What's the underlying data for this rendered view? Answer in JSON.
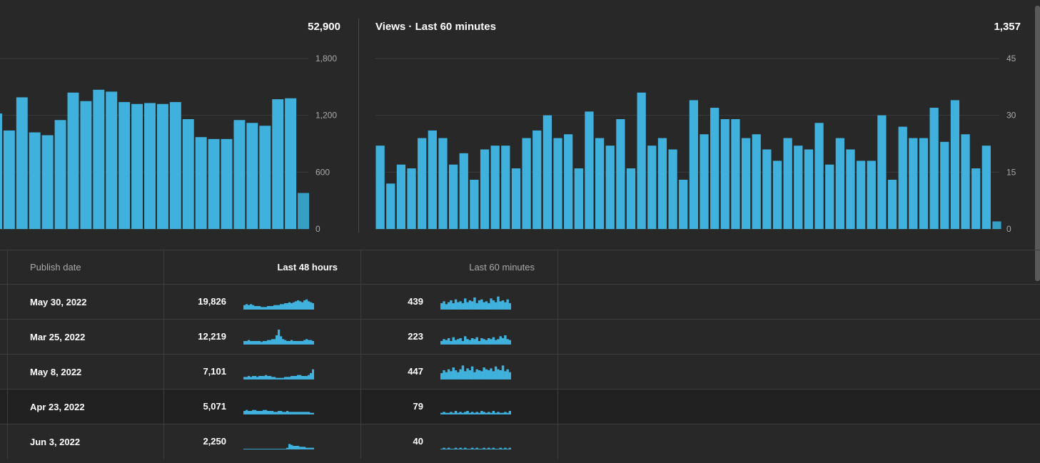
{
  "colors": {
    "bar": "#3fb1dc",
    "bar_alt": "#369fc6",
    "grid": "#3a3a3a",
    "background": "#282828"
  },
  "left_chart": {
    "total": "52,900",
    "y_ticks": [
      "1,800",
      "1,200",
      "600",
      "0"
    ],
    "chart_data": {
      "type": "bar",
      "ylim": [
        0,
        1800
      ],
      "y_ticks": [
        0,
        600,
        1200,
        1800
      ],
      "values": [
        1220,
        1040,
        1390,
        1020,
        990,
        1150,
        1440,
        1350,
        1470,
        1450,
        1340,
        1320,
        1330,
        1320,
        1340,
        1160,
        970,
        950,
        950,
        1150,
        1120,
        1090,
        1370,
        1380,
        380
      ],
      "last_bar_alt": true
    }
  },
  "right_chart": {
    "title": "Views · Last 60 minutes",
    "total": "1,357",
    "y_ticks": [
      "45",
      "30",
      "15",
      "0"
    ],
    "chart_data": {
      "type": "bar",
      "ylim": [
        0,
        45
      ],
      "y_ticks": [
        0,
        15,
        30,
        45
      ],
      "values": [
        22,
        12,
        17,
        16,
        24,
        26,
        24,
        17,
        20,
        13,
        21,
        22,
        22,
        16,
        24,
        26,
        30,
        24,
        25,
        16,
        31,
        24,
        22,
        29,
        16,
        36,
        22,
        24,
        21,
        13,
        34,
        25,
        32,
        29,
        29,
        24,
        25,
        21,
        18,
        24,
        22,
        21,
        28,
        17,
        24,
        21,
        18,
        18,
        30,
        13,
        27,
        24,
        24,
        32,
        23,
        34,
        25,
        16,
        22,
        2
      ],
      "last_bar_alt": true
    }
  },
  "table": {
    "headers": {
      "publish_date": "Publish date",
      "last_48_hours": "Last 48 hours",
      "last_60_minutes": "Last 60 minutes"
    },
    "rows": [
      {
        "date": "May 30, 2022",
        "views_48h": "19,826",
        "views_60m": "439",
        "spark_48h": [
          4,
          5,
          4,
          5,
          4,
          3,
          3,
          3,
          2,
          2,
          2,
          3,
          3,
          3,
          4,
          4,
          4,
          5,
          5,
          6,
          6,
          7,
          6,
          7,
          8,
          9,
          8,
          7,
          9,
          10,
          8,
          7,
          6
        ],
        "spark_60m": [
          6,
          8,
          5,
          7,
          9,
          6,
          10,
          7,
          8,
          6,
          11,
          7,
          9,
          8,
          12,
          6,
          9,
          10,
          7,
          8,
          6,
          11,
          9,
          7,
          13,
          8,
          9,
          7,
          10,
          6
        ]
      },
      {
        "date": "Mar 25, 2022",
        "views_48h": "12,219",
        "views_60m": "223",
        "spark_48h": [
          3,
          3,
          4,
          3,
          3,
          3,
          3,
          3,
          2,
          3,
          3,
          4,
          4,
          5,
          5,
          9,
          15,
          8,
          5,
          4,
          3,
          3,
          4,
          3,
          3,
          3,
          3,
          3,
          4,
          5,
          4,
          4,
          3
        ],
        "spark_60m": [
          3,
          5,
          4,
          6,
          3,
          7,
          4,
          5,
          6,
          3,
          8,
          5,
          4,
          6,
          5,
          7,
          3,
          6,
          5,
          4,
          6,
          5,
          7,
          4,
          5,
          8,
          6,
          9,
          5,
          4
        ]
      },
      {
        "date": "May 8, 2022",
        "views_48h": "7,101",
        "views_60m": "447",
        "spark_48h": [
          2,
          2,
          3,
          2,
          3,
          3,
          2,
          3,
          3,
          3,
          4,
          3,
          3,
          2,
          2,
          1,
          1,
          1,
          1,
          2,
          2,
          2,
          3,
          3,
          3,
          4,
          4,
          3,
          3,
          3,
          4,
          6,
          10
        ],
        "spark_60m": [
          6,
          9,
          7,
          10,
          8,
          12,
          9,
          7,
          10,
          14,
          8,
          11,
          9,
          13,
          7,
          10,
          9,
          8,
          12,
          10,
          9,
          11,
          8,
          13,
          10,
          9,
          14,
          8,
          10,
          7
        ]
      },
      {
        "date": "Apr 23, 2022",
        "views_48h": "5,071",
        "views_60m": "79",
        "spark_48h": [
          3,
          4,
          3,
          3,
          4,
          4,
          3,
          3,
          3,
          4,
          4,
          3,
          3,
          3,
          2,
          2,
          3,
          3,
          2,
          2,
          3,
          2,
          2,
          2,
          2,
          2,
          2,
          2,
          2,
          2,
          2,
          1,
          1
        ],
        "spark_60m": [
          1,
          2,
          1,
          1,
          2,
          1,
          3,
          1,
          2,
          1,
          2,
          3,
          1,
          2,
          1,
          2,
          1,
          3,
          2,
          1,
          2,
          1,
          3,
          1,
          2,
          1,
          1,
          2,
          1,
          3
        ]
      },
      {
        "date": "Jun 3, 2022",
        "views_48h": "2,250",
        "views_60m": "40",
        "spark_48h": [
          0,
          0,
          0,
          0,
          0,
          0,
          0,
          0,
          0,
          0,
          0,
          0,
          0,
          0,
          0,
          0,
          0,
          0,
          0,
          0,
          1,
          5,
          4,
          3,
          3,
          3,
          2,
          2,
          2,
          1,
          1,
          1,
          1
        ],
        "spark_60m": [
          0,
          1,
          0,
          1,
          0,
          0,
          1,
          0,
          1,
          0,
          1,
          0,
          0,
          1,
          0,
          1,
          0,
          0,
          1,
          0,
          1,
          0,
          1,
          0,
          0,
          1,
          0,
          1,
          0,
          1
        ]
      }
    ]
  }
}
